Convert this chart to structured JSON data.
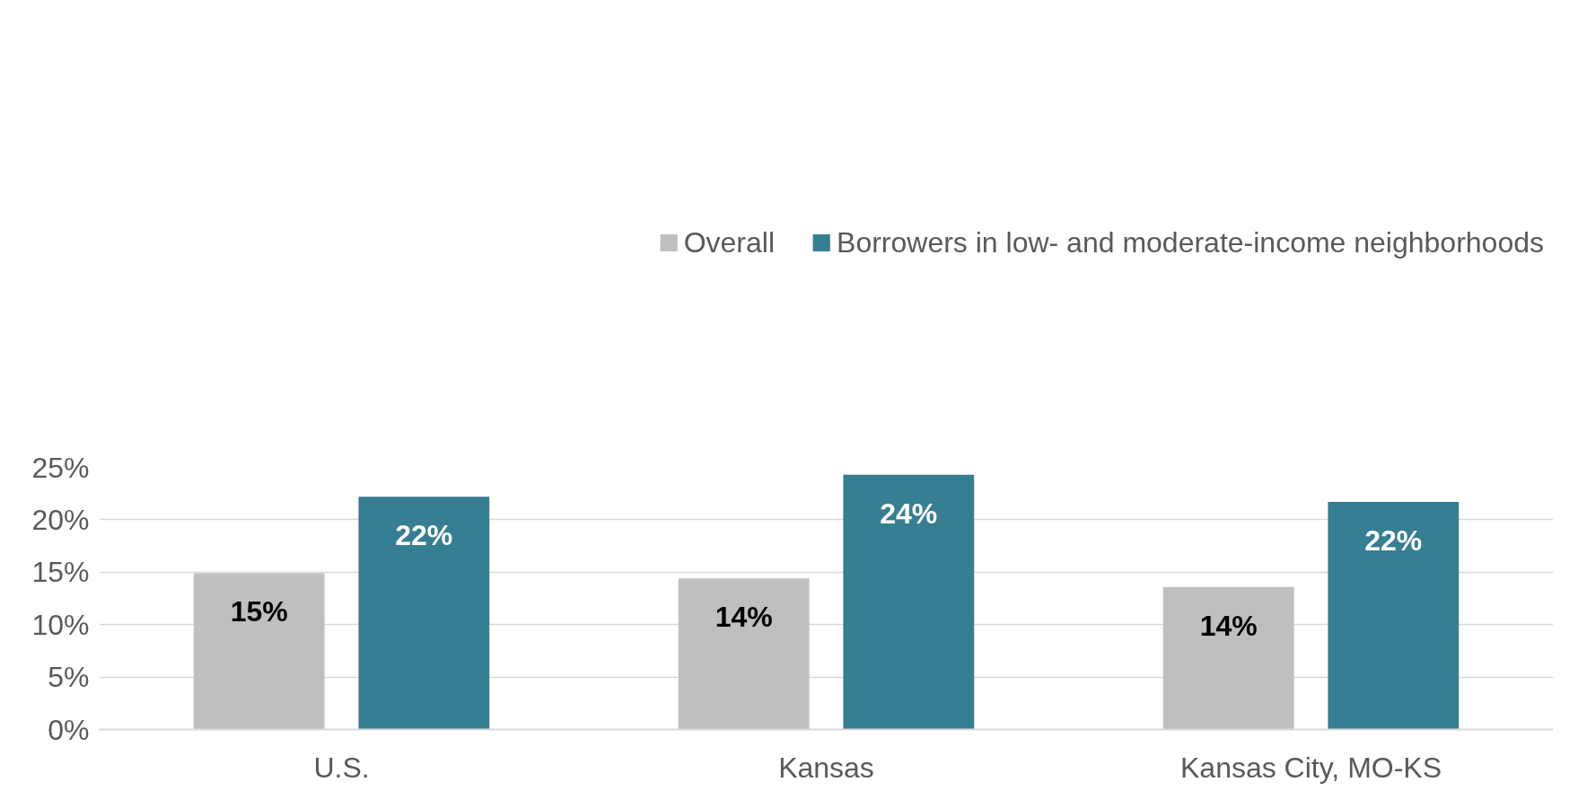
{
  "chart_data": {
    "type": "bar",
    "categories": [
      "U.S.",
      "Kansas",
      "Kansas City, MO-KS"
    ],
    "series": [
      {
        "name": "Overall",
        "color": "#bfbfbf",
        "values": [
          14.9,
          14.4,
          13.6
        ],
        "value_labels": [
          "15%",
          "14%",
          "14%"
        ]
      },
      {
        "name": "Borrowers in low- and moderate-income neighborhoods",
        "color": "#367e92",
        "values": [
          22.2,
          24.3,
          21.7
        ],
        "value_labels": [
          "22%",
          "24%",
          "22%"
        ]
      }
    ],
    "ylim": [
      0,
      25
    ],
    "yticks": [
      {
        "value": 0,
        "label": "0%"
      },
      {
        "value": 5,
        "label": "5%"
      },
      {
        "value": 10,
        "label": "10%"
      },
      {
        "value": 15,
        "label": "15%"
      },
      {
        "value": 20,
        "label": "20%"
      },
      {
        "value": 25,
        "label": "25%"
      }
    ],
    "grid": "y",
    "legend": "top right"
  }
}
